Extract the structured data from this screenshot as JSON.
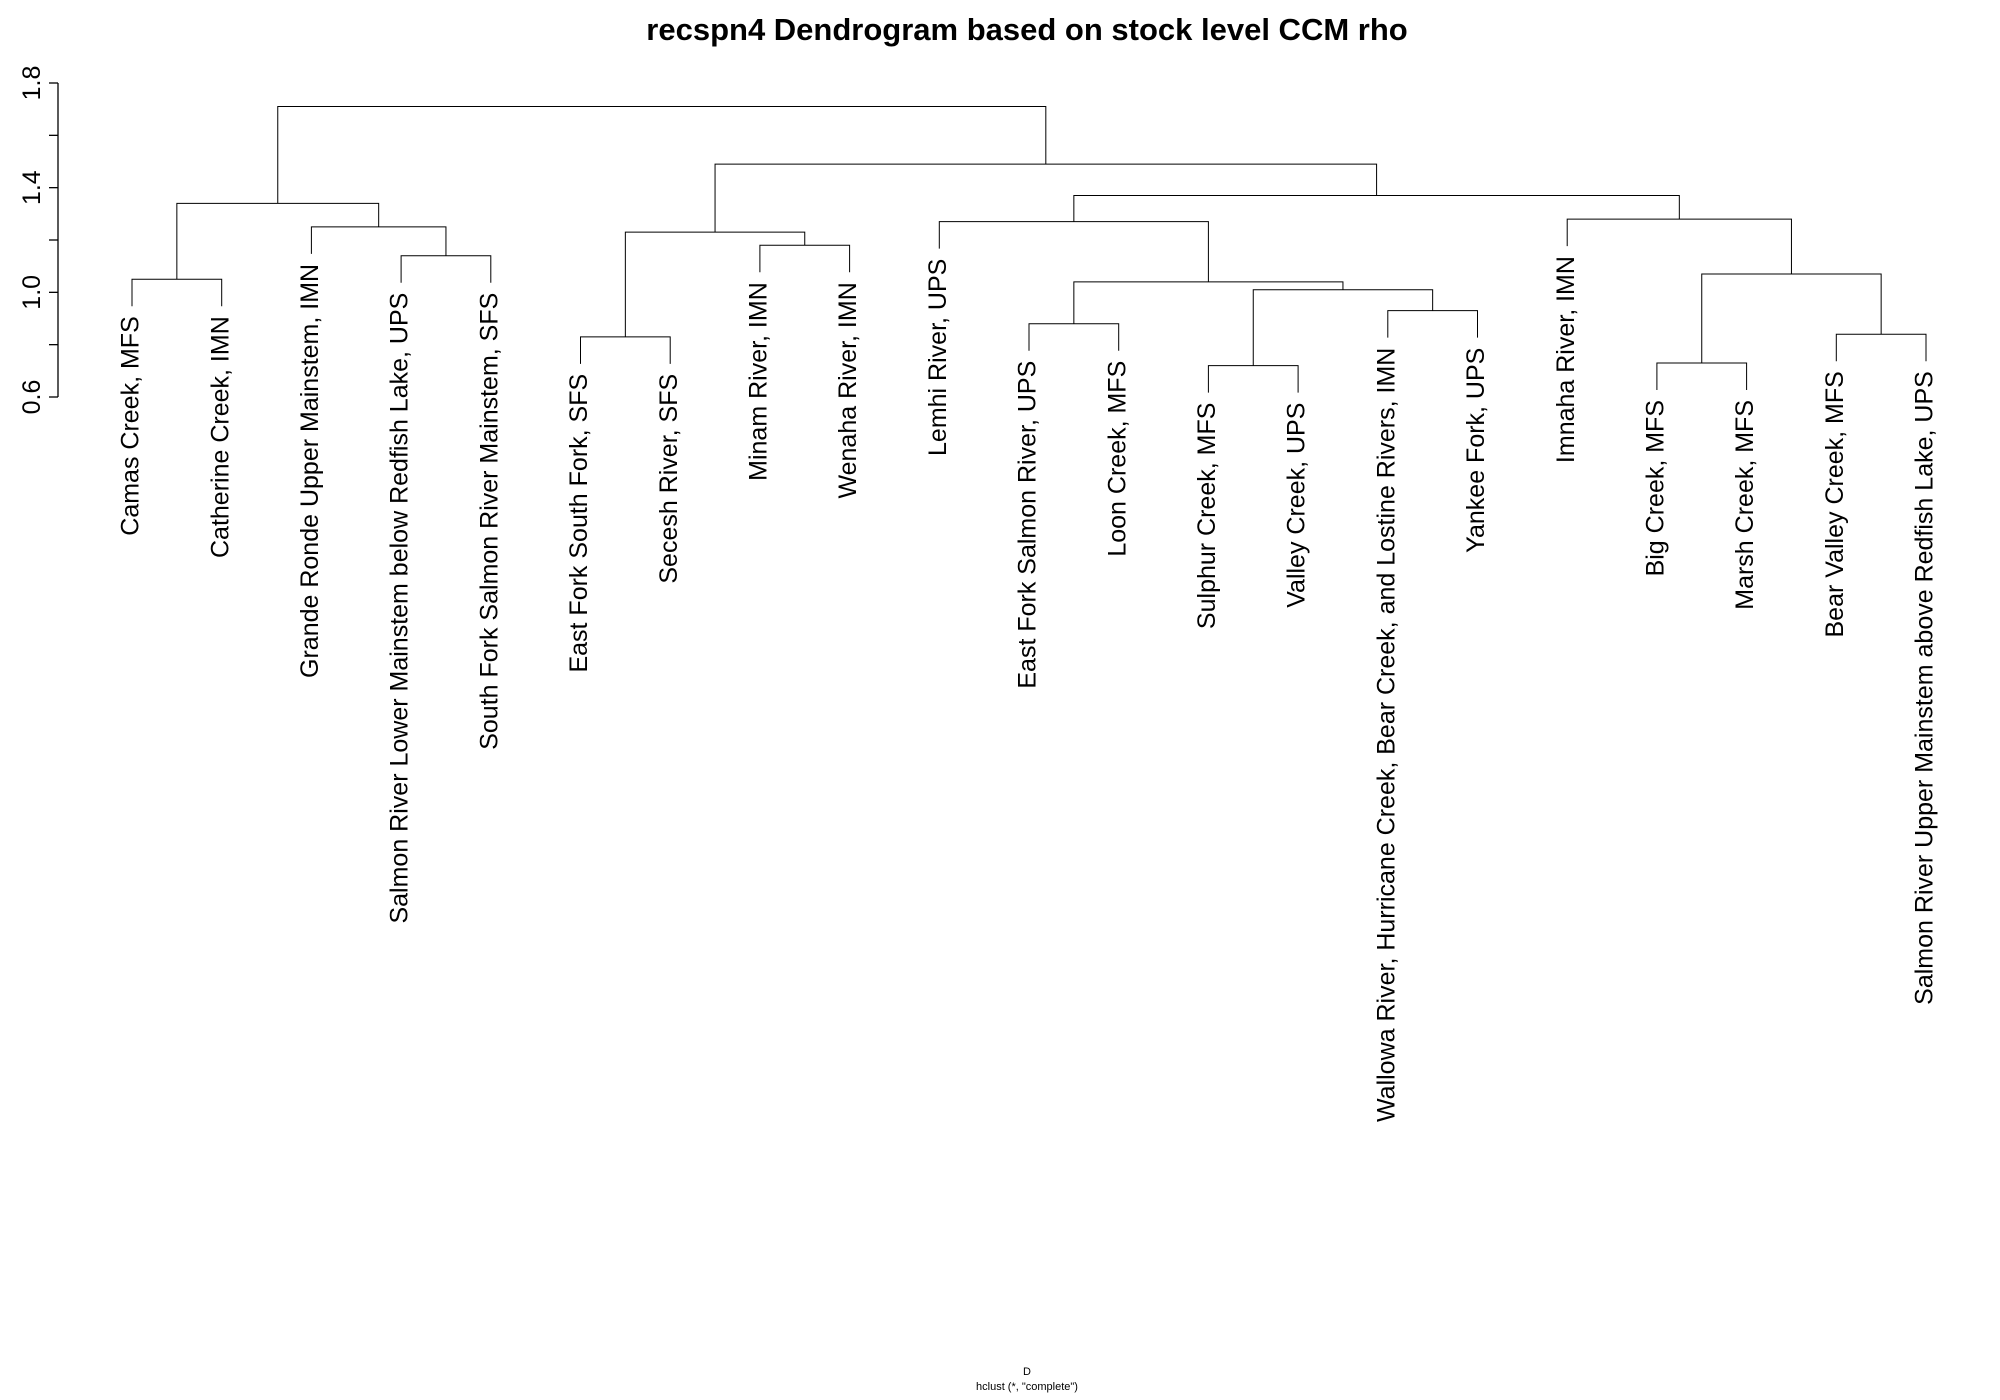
{
  "chart_data": {
    "type": "dendrogram",
    "title": "recspn4  Dendrogram based on stock level CCM rho",
    "xlabel": "D",
    "subtitle": "hclust (*, \"complete\")",
    "labels": [
      "Camas Creek, MFS",
      "Catherine Creek, IMN",
      "Grande Ronde Upper Mainstem, IMN",
      "Salmon River Lower Mainstem below Redfish Lake, UPS",
      "South Fork Salmon River Mainstem, SFS",
      "East Fork South Fork, SFS",
      "Secesh River, SFS",
      "Minam River, IMN",
      "Wenaha River, IMN",
      "Lemhi River, UPS",
      "East Fork Salmon River, UPS",
      "Loon Creek, MFS",
      "Sulphur Creek, MFS",
      "Valley Creek, UPS",
      "Wallowa River, Hurricane Creek, Bear Creek, and Lostine Rivers, IMN",
      "Yankee Fork, UPS",
      "Imnaha River, IMN",
      "Big Creek, MFS",
      "Marsh Creek, MFS",
      "Bear Valley Creek, MFS",
      "Salmon River Upper Mainstem above Redfish Lake, UPS"
    ],
    "merge": [
      [
        -13,
        -14
      ],
      [
        -18,
        -19
      ],
      [
        -6,
        -7
      ],
      [
        -20,
        -21
      ],
      [
        -11,
        -12
      ],
      [
        -15,
        -16
      ],
      [
        1,
        6
      ],
      [
        -1,
        -2
      ],
      [
        5,
        7
      ],
      [
        2,
        4
      ],
      [
        -4,
        -5
      ],
      [
        -8,
        -9
      ],
      [
        3,
        12
      ],
      [
        -3,
        11
      ],
      [
        -10,
        9
      ],
      [
        -17,
        10
      ],
      [
        8,
        14
      ],
      [
        15,
        16
      ],
      [
        13,
        18
      ],
      [
        17,
        19
      ]
    ],
    "height": [
      0.72,
      0.73,
      0.83,
      0.84,
      0.88,
      0.93,
      1.01,
      1.05,
      1.04,
      1.07,
      1.14,
      1.18,
      1.23,
      1.25,
      1.27,
      1.28,
      1.34,
      1.37,
      1.49,
      1.71
    ],
    "color": "#000000",
    "ylim": [
      0.6,
      1.8
    ],
    "yticks": [
      0.6,
      {
        "value": 1,
        "label": "1.0"
      },
      1.4,
      1.8
    ],
    "minor_yticks": [
      0.8,
      1.2,
      1.6
    ]
  }
}
